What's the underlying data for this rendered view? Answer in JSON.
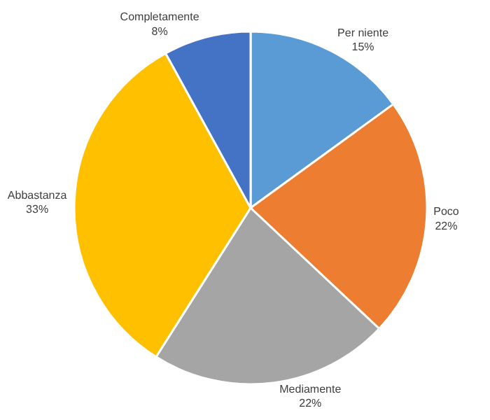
{
  "chart_data": {
    "type": "pie",
    "categories": [
      "Per niente",
      "Poco",
      "Mediamente",
      "Abbastanza",
      "Completamente"
    ],
    "values": [
      15,
      22,
      22,
      33,
      8
    ],
    "value_labels": [
      "15%",
      "22%",
      "22%",
      "33%",
      "8%"
    ],
    "colors": [
      "#5b9bd5",
      "#ed7d31",
      "#a5a5a5",
      "#ffc000",
      "#4472c4"
    ],
    "legend": false
  }
}
